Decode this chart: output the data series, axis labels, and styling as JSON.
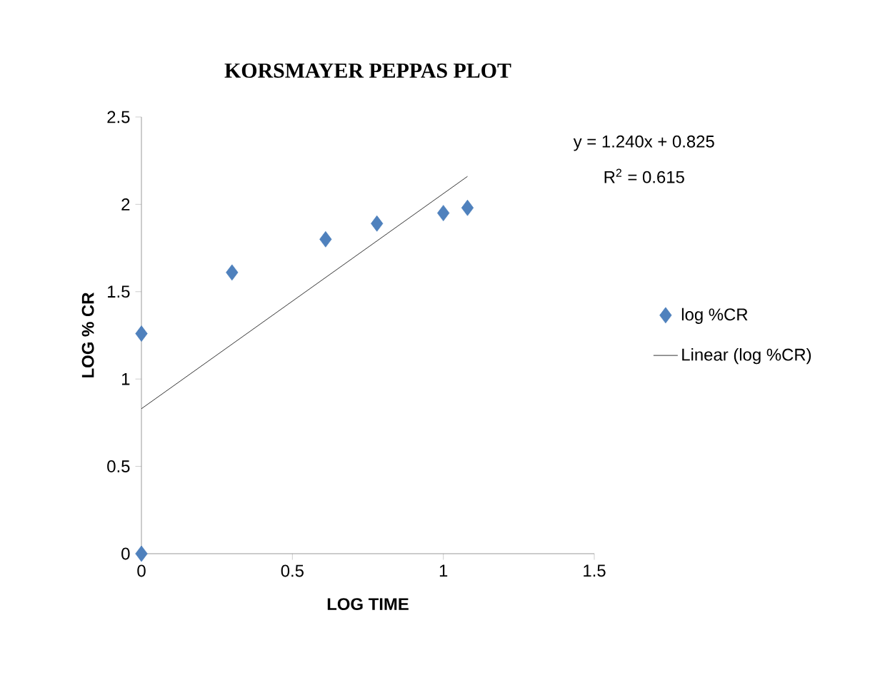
{
  "chart_data": {
    "type": "scatter",
    "title": "KORSMAYER PEPPAS PLOT",
    "xlabel": "LOG TIME",
    "ylabel": "LOG % CR",
    "series": [
      {
        "name": "log %CR",
        "color": "#4f81bd",
        "marker": "diamond",
        "x": [
          0,
          0,
          0.3,
          0.61,
          0.78,
          1.0,
          1.08
        ],
        "values": [
          0,
          1.26,
          1.61,
          1.8,
          1.89,
          1.95,
          1.98
        ]
      },
      {
        "name": "Linear (log %CR)",
        "type": "line",
        "color": "#000000",
        "marker": "none",
        "x": [
          0,
          1.08
        ],
        "values": [
          0.83,
          2.16
        ]
      }
    ],
    "xlim": [
      0,
      1.5
    ],
    "xticks": [
      0,
      0.5,
      1,
      1.5
    ],
    "ylim": [
      0,
      2.5
    ],
    "yticks": [
      0,
      0.5,
      1,
      1.5,
      2,
      2.5
    ],
    "annotations": [
      "y = 1.240x + 0.825",
      "R$^{2}$ = 0.615"
    ],
    "legend": "right",
    "grid": false
  }
}
